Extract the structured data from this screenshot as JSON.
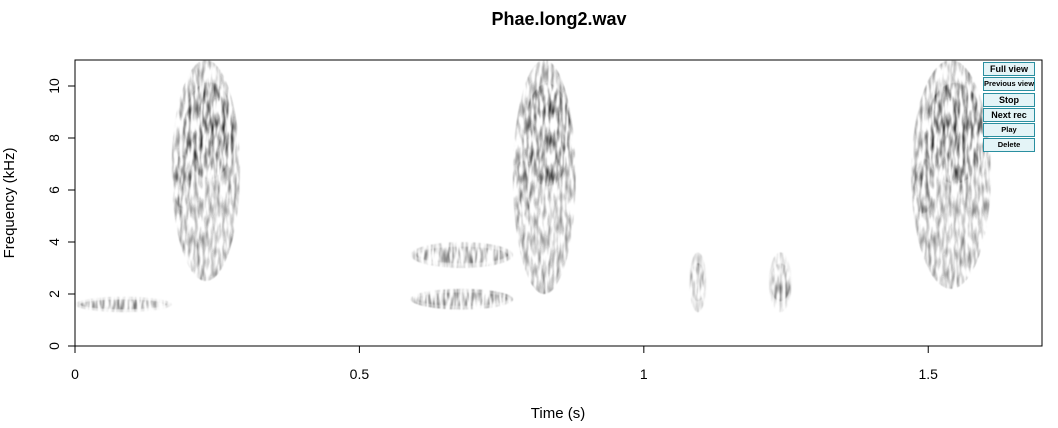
{
  "title": "Phae.long2.wav",
  "buttons": {
    "full_view": "Full view",
    "previous_view": "Previous view",
    "stop": "Stop",
    "next_rec": "Next rec",
    "play": "Play",
    "delete": "Delete"
  },
  "chart_data": {
    "type": "heatmap",
    "title": "Phae.long2.wav",
    "xlabel": "Time (s)",
    "ylabel": "Frequency (kHz)",
    "xlim": [
      0,
      1.7
    ],
    "ylim": [
      0,
      11
    ],
    "x_ticks": [
      0,
      0.5,
      1,
      1.5
    ],
    "x_tick_labels": [
      "0",
      "0.5",
      "1",
      "1.5"
    ],
    "y_ticks": [
      0,
      2,
      4,
      6,
      8,
      10
    ],
    "y_tick_labels": [
      "0",
      "2",
      "4",
      "6",
      "8",
      "10"
    ],
    "colormap": "grayscale",
    "grid": false,
    "energy_regions": [
      {
        "t_start": 0.0,
        "t_end": 0.17,
        "f_low": 1.3,
        "f_high": 1.9,
        "intensity": 0.35
      },
      {
        "t_start": 0.17,
        "t_end": 0.29,
        "f_low": 2.5,
        "f_high": 11.0,
        "intensity": 0.9
      },
      {
        "t_start": 0.59,
        "t_end": 0.77,
        "f_low": 1.4,
        "f_high": 2.2,
        "intensity": 0.75
      },
      {
        "t_start": 0.59,
        "t_end": 0.77,
        "f_low": 3.0,
        "f_high": 4.0,
        "intensity": 0.6
      },
      {
        "t_start": 0.77,
        "t_end": 0.88,
        "f_low": 2.0,
        "f_high": 11.0,
        "intensity": 0.9
      },
      {
        "t_start": 1.08,
        "t_end": 1.11,
        "f_low": 1.3,
        "f_high": 3.6,
        "intensity": 0.45
      },
      {
        "t_start": 1.22,
        "t_end": 1.26,
        "f_low": 1.3,
        "f_high": 3.6,
        "intensity": 0.45
      },
      {
        "t_start": 1.47,
        "t_end": 1.61,
        "f_low": 2.2,
        "f_high": 11.0,
        "intensity": 0.9
      }
    ]
  }
}
